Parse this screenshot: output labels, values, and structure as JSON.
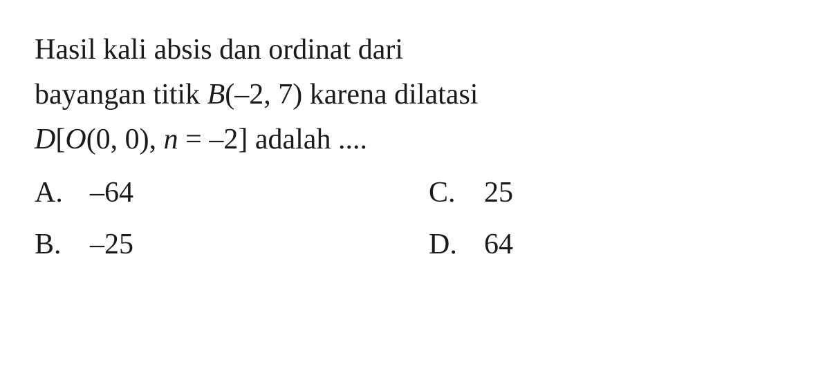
{
  "question": {
    "line1": "Hasil kali absis dan ordinat dari",
    "line2_pre": "bayangan titik ",
    "line2_var": "B",
    "line2_post": "(–2, 7) karena dilatasi",
    "line3_pre_var": "D",
    "line3_bracket_open": "[",
    "line3_var2": "O",
    "line3_mid": "(0, 0), ",
    "line3_var3": "n",
    "line3_post": " = –2] adalah ...."
  },
  "options": {
    "a": {
      "letter": "A.",
      "value": "–64"
    },
    "b": {
      "letter": "B.",
      "value": "–25"
    },
    "c": {
      "letter": "C.",
      "value": "25"
    },
    "d": {
      "letter": "D.",
      "value": "64"
    }
  },
  "style": {
    "font_size_pt": 32,
    "text_color": "#1a1a1a",
    "background_color": "#ffffff"
  }
}
